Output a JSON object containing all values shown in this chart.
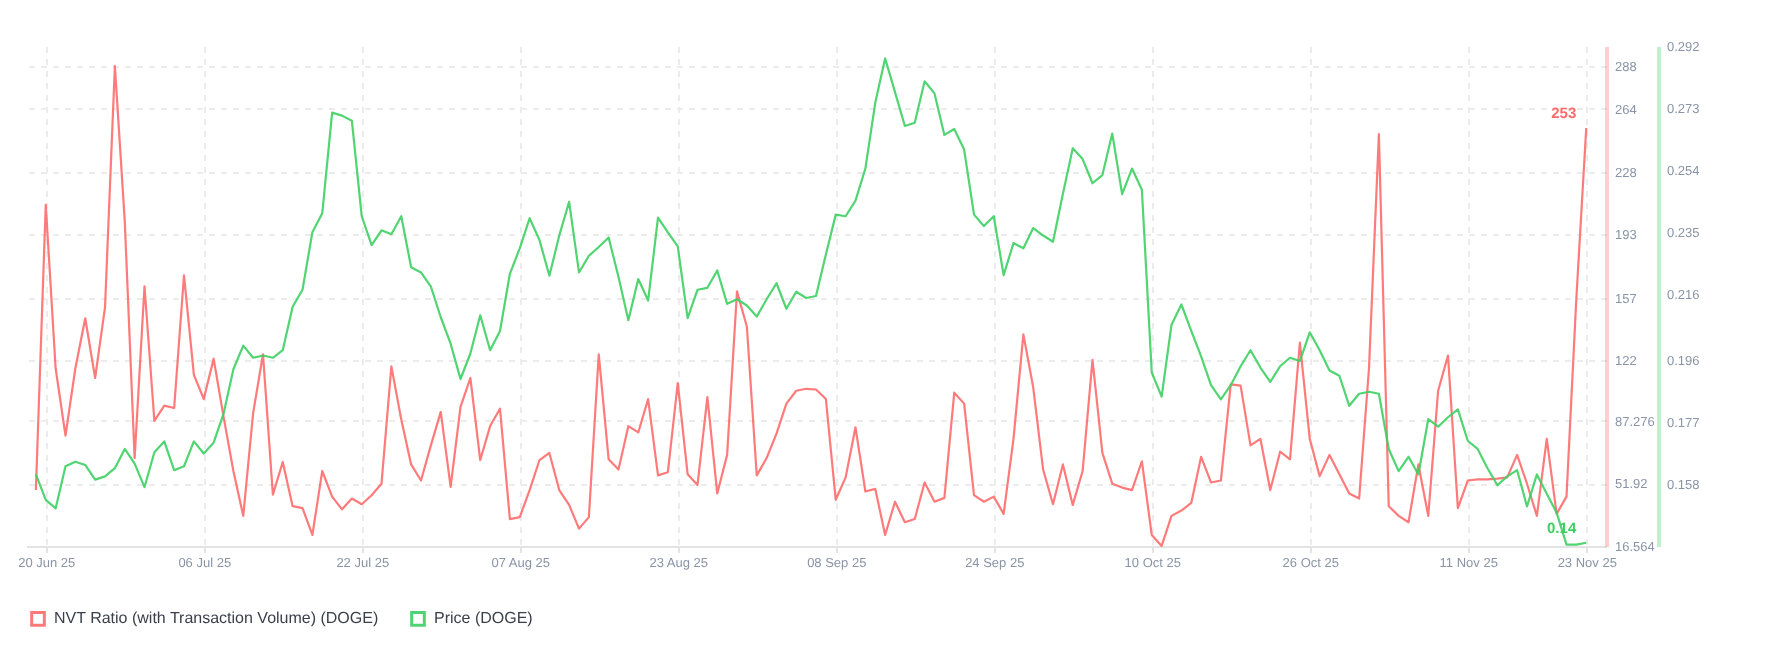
{
  "chart_data": {
    "type": "line",
    "x": [
      "2025-06-19",
      "2025-06-20",
      "2025-06-21",
      "2025-06-22",
      "2025-06-23",
      "2025-06-24",
      "2025-06-25",
      "2025-06-26",
      "2025-06-27",
      "2025-06-28",
      "2025-06-29",
      "2025-06-30",
      "2025-07-01",
      "2025-07-02",
      "2025-07-03",
      "2025-07-04",
      "2025-07-05",
      "2025-07-06",
      "2025-07-07",
      "2025-07-08",
      "2025-07-09",
      "2025-07-10",
      "2025-07-11",
      "2025-07-12",
      "2025-07-13",
      "2025-07-14",
      "2025-07-15",
      "2025-07-16",
      "2025-07-17",
      "2025-07-18",
      "2025-07-19",
      "2025-07-20",
      "2025-07-21",
      "2025-07-22",
      "2025-07-23",
      "2025-07-24",
      "2025-07-25",
      "2025-07-26",
      "2025-07-27",
      "2025-07-28",
      "2025-07-29",
      "2025-07-30",
      "2025-07-31",
      "2025-08-01",
      "2025-08-02",
      "2025-08-03",
      "2025-08-04",
      "2025-08-05",
      "2025-08-06",
      "2025-08-07",
      "2025-08-08",
      "2025-08-09",
      "2025-08-10",
      "2025-08-11",
      "2025-08-12",
      "2025-08-13",
      "2025-08-14",
      "2025-08-15",
      "2025-08-16",
      "2025-08-17",
      "2025-08-18",
      "2025-08-19",
      "2025-08-20",
      "2025-08-21",
      "2025-08-22",
      "2025-08-23",
      "2025-08-24",
      "2025-08-25",
      "2025-08-26",
      "2025-08-27",
      "2025-08-28",
      "2025-08-29",
      "2025-08-30",
      "2025-08-31",
      "2025-09-01",
      "2025-09-02",
      "2025-09-03",
      "2025-09-04",
      "2025-09-05",
      "2025-09-06",
      "2025-09-07",
      "2025-09-08",
      "2025-09-09",
      "2025-09-10",
      "2025-09-11",
      "2025-09-12",
      "2025-09-13",
      "2025-09-14",
      "2025-09-15",
      "2025-09-16",
      "2025-09-17",
      "2025-09-18",
      "2025-09-19",
      "2025-09-20",
      "2025-09-21",
      "2025-09-22",
      "2025-09-23",
      "2025-09-24",
      "2025-09-25",
      "2025-09-26",
      "2025-09-27",
      "2025-09-28",
      "2025-09-29",
      "2025-09-30",
      "2025-10-01",
      "2025-10-02",
      "2025-10-03",
      "2025-10-04",
      "2025-10-05",
      "2025-10-06",
      "2025-10-07",
      "2025-10-08",
      "2025-10-09",
      "2025-10-10",
      "2025-10-11",
      "2025-10-12",
      "2025-10-13",
      "2025-10-14",
      "2025-10-15",
      "2025-10-16",
      "2025-10-17",
      "2025-10-18",
      "2025-10-19",
      "2025-10-20",
      "2025-10-21",
      "2025-10-22",
      "2025-10-23",
      "2025-10-24",
      "2025-10-25",
      "2025-10-26",
      "2025-10-27",
      "2025-10-28",
      "2025-10-29",
      "2025-10-30",
      "2025-10-31",
      "2025-11-01",
      "2025-11-02",
      "2025-11-03",
      "2025-11-04",
      "2025-11-05",
      "2025-11-06",
      "2025-11-07",
      "2025-11-08",
      "2025-11-09",
      "2025-11-10",
      "2025-11-11",
      "2025-11-12",
      "2025-11-13",
      "2025-11-14",
      "2025-11-15",
      "2025-11-16",
      "2025-11-17",
      "2025-11-18",
      "2025-11-19",
      "2025-11-20",
      "2025-11-21",
      "2025-11-22",
      "2025-11-23"
    ],
    "series": [
      {
        "name": "NVT Ratio (with Transaction Volume) (DOGE)",
        "color": "#ff6b6b",
        "values": [
          48.2,
          209.6,
          117.1,
          79.0,
          117.1,
          145.4,
          111.6,
          151.5,
          288,
          200.5,
          66.3,
          163.5,
          87.3,
          96.0,
          94.6,
          169.7,
          113.4,
          99.7,
          122.5,
          89.9,
          59.0,
          33.6,
          91.7,
          125.0,
          45.6,
          64.1,
          39.1,
          38.0,
          22.8,
          59.0,
          44.5,
          37.3,
          43.4,
          40.2,
          45.3,
          51.8,
          118.2,
          88.1,
          62.7,
          53.6,
          73.5,
          92.4,
          50.0,
          95.3,
          111.6,
          65.2,
          84.4,
          94.2,
          31.8,
          32.9,
          48.2,
          65.2,
          69.2,
          48.2,
          39.8,
          26.4,
          32.9,
          125.0,
          65.6,
          59.8,
          84.4,
          80.8,
          99.7,
          56.5,
          58.3,
          108.7,
          57.2,
          51.1,
          100.8,
          46.3,
          68.1,
          160.6,
          140.6,
          56.5,
          66.3,
          80.1,
          97.1,
          104.4,
          105.5,
          105.1,
          99.7,
          42.7,
          55.4,
          83.7,
          47.4,
          48.9,
          22.8,
          41.6,
          30.0,
          31.8,
          52.5,
          41.6,
          43.8,
          103.3,
          97.1,
          45.3,
          41.6,
          44.5,
          34.7,
          77.2,
          136.3,
          106.2,
          59.8,
          40.2,
          62.7,
          39.8,
          59.0,
          121.8,
          69.2,
          51.8,
          49.6,
          48.2,
          64.5,
          22.8,
          16.6,
          33.6,
          36.6,
          40.9,
          67.0,
          52.5,
          53.6,
          108.0,
          107.3,
          73.5,
          77.2,
          48.2,
          69.9,
          65.6,
          131.6,
          77.2,
          56.1,
          68.1,
          57.2,
          46.3,
          43.4,
          117.1,
          249.5,
          39.1,
          33.6,
          30.0,
          62.7,
          33.6,
          104.4,
          124.3,
          38.0,
          53.6,
          54.3,
          54.3,
          54.7,
          55.4,
          68.1,
          51.8,
          33.6,
          77.2,
          34.7,
          44.5,
          157.0,
          253
        ],
        "value_labels": [
          null,
          null,
          null,
          null,
          null,
          null,
          null,
          null,
          null,
          null,
          null,
          null,
          null,
          null,
          null,
          null,
          null,
          null,
          null,
          null,
          null,
          null,
          null,
          null,
          null,
          null,
          null,
          null,
          null,
          null,
          null,
          null,
          null,
          null,
          null,
          null,
          null,
          null,
          null,
          null,
          null,
          null,
          null,
          null,
          null,
          null,
          null,
          null,
          null,
          null,
          null,
          null,
          null,
          null,
          null,
          null,
          null,
          null,
          null,
          null,
          null,
          null,
          null,
          null,
          null,
          null,
          null,
          null,
          null,
          null,
          null,
          null,
          null,
          null,
          null,
          null,
          null,
          null,
          null,
          null,
          null,
          null,
          null,
          null,
          null,
          null,
          null,
          null,
          null,
          null,
          null,
          null,
          null,
          null,
          null,
          null,
          null,
          null,
          null,
          null,
          null,
          null,
          null,
          null,
          null,
          null,
          null,
          null,
          null,
          null,
          null,
          null,
          null,
          null,
          null,
          null,
          null,
          null,
          null,
          null,
          null,
          null,
          null,
          null,
          null,
          null,
          null,
          null,
          null,
          null,
          null,
          null,
          null,
          null,
          null,
          null,
          null,
          null,
          null,
          null,
          null,
          null,
          null,
          null,
          null,
          null,
          null,
          null,
          null,
          null,
          null,
          null,
          null,
          null,
          null,
          null,
          null,
          "253"
        ]
      },
      {
        "name": "Price (DOGE)",
        "color": "#3ecf63",
        "axis": "y2",
        "values": [
          0.1609,
          0.1531,
          0.1505,
          0.1634,
          0.1648,
          0.1638,
          0.1593,
          0.1603,
          0.1628,
          0.1687,
          0.1642,
          0.157,
          0.1677,
          0.171,
          0.1622,
          0.1634,
          0.171,
          0.1673,
          0.1706,
          0.1794,
          0.1931,
          0.2003,
          0.1966,
          0.1973,
          0.1966,
          0.1989,
          0.2122,
          0.2174,
          0.235,
          0.2408,
          0.2716,
          0.2707,
          0.2691,
          0.2399,
          0.2311,
          0.2356,
          0.2344,
          0.2399,
          0.2243,
          0.2227,
          0.2184,
          0.209,
          0.2009,
          0.1901,
          0.1979,
          0.2096,
          0.1989,
          0.2048,
          0.2223,
          0.2301,
          0.2393,
          0.2326,
          0.2217,
          0.234,
          0.2443,
          0.2227,
          0.2278,
          0.2305,
          0.2334,
          0.2213,
          0.2081,
          0.2207,
          0.2141,
          0.2395,
          0.235,
          0.2307,
          0.2087,
          0.2174,
          0.218,
          0.2233,
          0.2131,
          0.2145,
          0.2126,
          0.2092,
          0.2145,
          0.2194,
          0.2116,
          0.2168,
          0.2149,
          0.2155,
          0.2282,
          0.2404,
          0.2399,
          0.2447,
          0.2545,
          0.2746,
          0.2882,
          0.2779,
          0.2675,
          0.2685,
          0.2812,
          0.2775,
          0.2648,
          0.2666,
          0.2603,
          0.2404,
          0.2369,
          0.2399,
          0.2219,
          0.2317,
          0.2301,
          0.2363,
          0.234,
          0.2321,
          0.2467,
          0.2607,
          0.2574,
          0.25,
          0.2525,
          0.2652,
          0.2467,
          0.2545,
          0.248,
          0.1921,
          0.1847,
          0.2067,
          0.2129,
          0.2048,
          0.197,
          0.1882,
          0.1839,
          0.1882,
          0.194,
          0.1989,
          0.1936,
          0.1892,
          0.194,
          0.1966,
          0.1956,
          0.2044,
          0.1989,
          0.1927,
          0.1911,
          0.1819,
          0.1856,
          0.1862,
          0.1856,
          0.1687,
          0.1619,
          0.1663,
          0.1609,
          0.1778,
          0.1755,
          0.1784,
          0.1808,
          0.1712,
          0.1687,
          0.1628,
          0.1576,
          0.1603,
          0.1622,
          0.1511,
          0.1609,
          0.155,
          0.1492,
          0.1394,
          0.1394,
          0.14
        ],
        "value_labels": [
          null,
          null,
          null,
          null,
          null,
          null,
          null,
          null,
          null,
          null,
          null,
          null,
          null,
          null,
          null,
          null,
          null,
          null,
          null,
          null,
          null,
          null,
          null,
          null,
          null,
          null,
          null,
          null,
          null,
          null,
          null,
          null,
          null,
          null,
          null,
          null,
          null,
          null,
          null,
          null,
          null,
          null,
          null,
          null,
          null,
          null,
          null,
          null,
          null,
          null,
          null,
          null,
          null,
          null,
          null,
          null,
          null,
          null,
          null,
          null,
          null,
          null,
          null,
          null,
          null,
          null,
          null,
          null,
          null,
          null,
          null,
          null,
          null,
          null,
          null,
          null,
          null,
          null,
          null,
          null,
          null,
          null,
          null,
          null,
          null,
          null,
          null,
          null,
          null,
          null,
          null,
          null,
          null,
          null,
          null,
          null,
          null,
          null,
          null,
          null,
          null,
          null,
          null,
          null,
          null,
          null,
          null,
          null,
          null,
          null,
          null,
          null,
          null,
          null,
          null,
          null,
          null,
          null,
          null,
          null,
          null,
          null,
          null,
          null,
          null,
          null,
          null,
          null,
          null,
          null,
          null,
          null,
          null,
          null,
          null,
          null,
          null,
          null,
          null,
          null,
          null,
          null,
          null,
          null,
          null,
          null,
          null,
          null,
          null,
          null,
          null,
          null,
          null,
          null,
          null,
          null,
          null,
          "0.14"
        ]
      }
    ],
    "xlim": [
      "2025-06-18",
      "2025-11-25"
    ],
    "xticks": [
      {
        "value": "2025-06-20",
        "label": "20 Jun 25"
      },
      {
        "value": "2025-07-06",
        "label": "06 Jul 25"
      },
      {
        "value": "2025-07-22",
        "label": "22 Jul 25"
      },
      {
        "value": "2025-08-07",
        "label": "07 Aug 25"
      },
      {
        "value": "2025-08-23",
        "label": "23 Aug 25"
      },
      {
        "value": "2025-09-08",
        "label": "08 Sep 25"
      },
      {
        "value": "2025-09-24",
        "label": "24 Sep 25"
      },
      {
        "value": "2025-10-10",
        "label": "10 Oct 25"
      },
      {
        "value": "2025-10-26",
        "label": "26 Oct 25"
      },
      {
        "value": "2025-11-11",
        "label": "11 Nov 25"
      },
      {
        "value": "2025-11-23",
        "label": "23 Nov 25"
      }
    ],
    "ylim": [
      16.564,
      299.4
    ],
    "yticks": [
      16.564,
      51.92,
      87.276,
      122,
      157,
      193,
      228,
      264,
      288
    ],
    "y2lim": [
      0.139,
      0.292
    ],
    "y2ticks": [
      0.158,
      0.177,
      0.196,
      0.216,
      0.235,
      0.254,
      0.273,
      0.292
    ],
    "grid": true,
    "legend": "bottom",
    "marker": "none",
    "line_style": "solid"
  }
}
